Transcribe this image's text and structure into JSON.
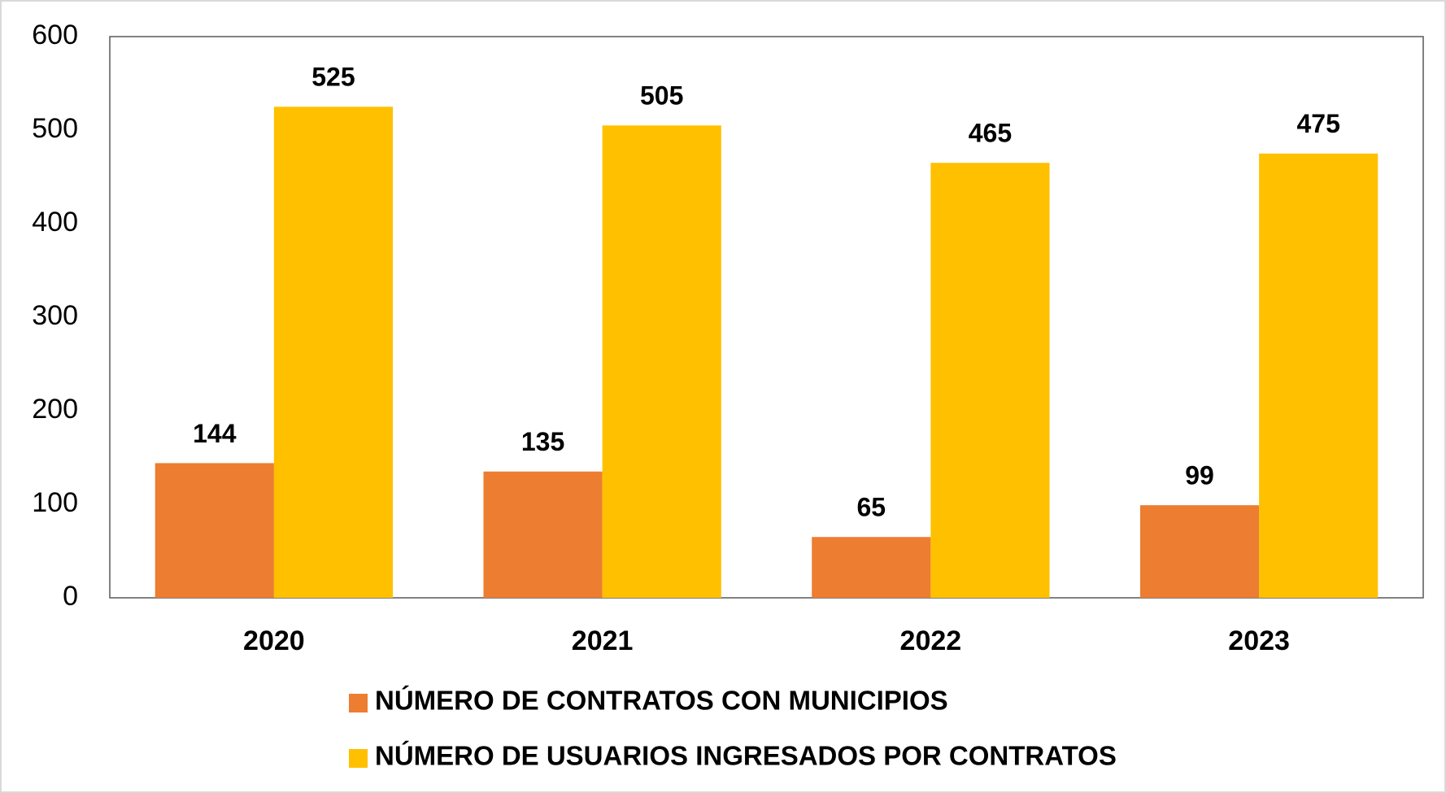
{
  "chart_data": {
    "type": "bar",
    "categories": [
      "2020",
      "2021",
      "2022",
      "2023"
    ],
    "series": [
      {
        "name": "NÚMERO DE CONTRATOS CON MUNICIPIOS",
        "color": "#ed7d31",
        "values": [
          144,
          135,
          65,
          99
        ]
      },
      {
        "name": "NÚMERO DE USUARIOS INGRESADOS POR CONTRATOS",
        "color": "#ffc000",
        "values": [
          525,
          505,
          465,
          475
        ]
      }
    ],
    "ylim": [
      0,
      600
    ],
    "yticks": [
      0,
      100,
      200,
      300,
      400,
      500,
      600
    ],
    "grid": false,
    "legend": "bottom"
  }
}
